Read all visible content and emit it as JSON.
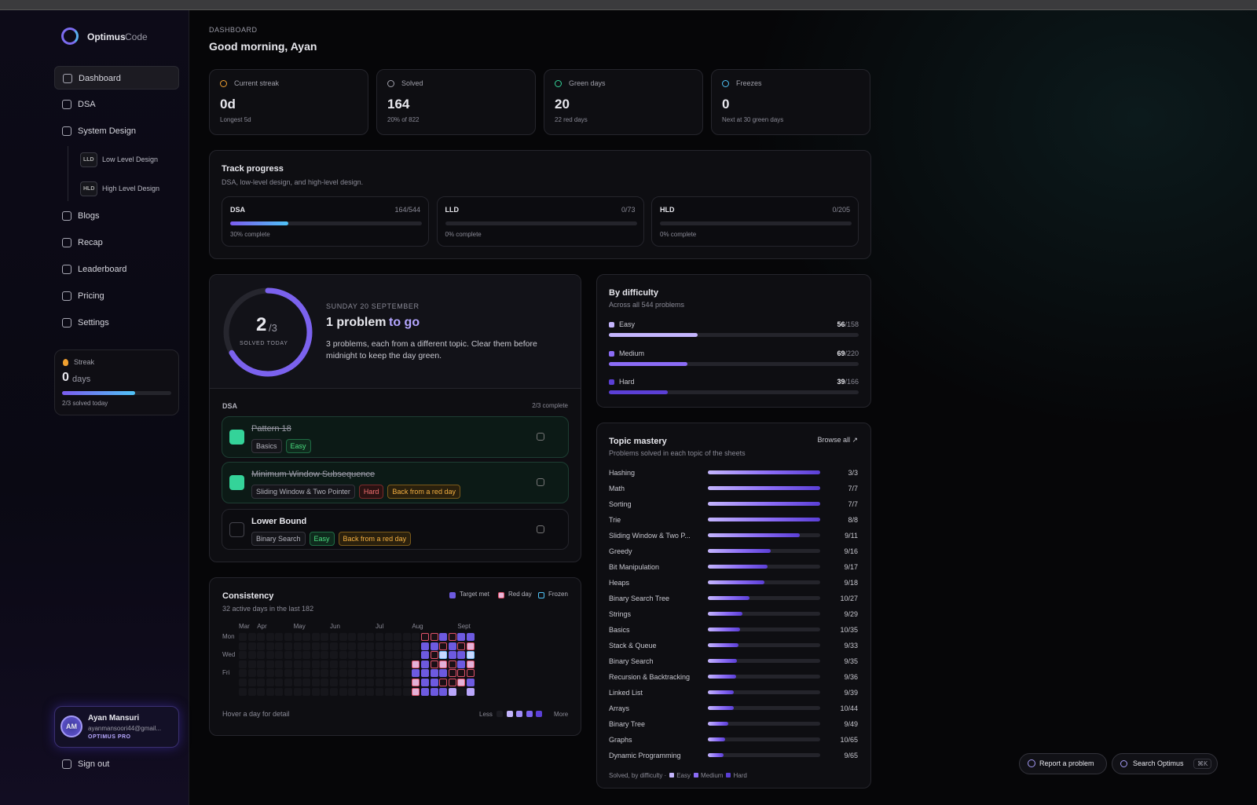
{
  "sidebar": {
    "brand": {
      "name": "Optimus",
      "suffix": "Code"
    },
    "nav": [
      "Dashboard",
      "DSA",
      "System Design"
    ],
    "sub_nav": [
      {
        "badge": "LLD",
        "label": "Low Level Design"
      },
      {
        "badge": "HLD",
        "label": "High Level Design"
      }
    ],
    "nav_more": [
      "Blogs",
      "Recap",
      "Leaderboard",
      "Pricing",
      "Settings"
    ],
    "streak": {
      "label": "Streak",
      "value": "0",
      "unit": "days",
      "note": "2/3 solved today",
      "solved": 2,
      "target": 3
    },
    "user": {
      "initials": "AM",
      "name": "Ayan Mansuri",
      "email": "ayanmansoori44@gmail...",
      "plan": "OPTIMUS PRO"
    },
    "sign_out": "Sign out"
  },
  "header": {
    "eyebrow": "DASHBOARD",
    "title": "Good morning, Ayan"
  },
  "stats": [
    {
      "label": "Current streak",
      "value": "0d",
      "note": "Longest 5d"
    },
    {
      "label": "Solved",
      "value": "164",
      "note": "20% of 822"
    },
    {
      "label": "Green days",
      "value": "20",
      "note": "22 red days"
    },
    {
      "label": "Freezes",
      "value": "0",
      "note": "Next at 30 green days"
    }
  ],
  "track": {
    "title": "Track progress",
    "subtitle": "DSA, low-level design, and high-level design.",
    "items": [
      {
        "name": "DSA",
        "count": "164/544",
        "solved": 164,
        "total": 544,
        "note": "30% complete"
      },
      {
        "name": "LLD",
        "count": "0/73",
        "solved": 0,
        "total": 73,
        "note": "0% complete"
      },
      {
        "name": "HLD",
        "count": "0/205",
        "solved": 0,
        "total": 205,
        "note": "0% complete"
      }
    ]
  },
  "today": {
    "solved": 2,
    "target": 3,
    "target_label": "/3",
    "ring_label": "SOLVED TODAY",
    "date": "SUNDAY 20 SEPTEMBER",
    "headline": "1 problem",
    "headline_rest": "to go",
    "description": "3 problems, each from a different topic. Clear them before midnight to keep the day green.",
    "section": "DSA",
    "section_note": "2/3 complete",
    "problems": [
      {
        "title": "Pattern 18",
        "done": true,
        "tags": [
          {
            "text": "Basics",
            "kind": "topic"
          },
          {
            "text": "Easy",
            "kind": "easy"
          }
        ]
      },
      {
        "title": "Minimum Window Subsequence",
        "done": true,
        "tags": [
          {
            "text": "Sliding Window & Two Pointer",
            "kind": "topic"
          },
          {
            "text": "Hard",
            "kind": "hard"
          },
          {
            "text": "Back from a red day",
            "kind": "back"
          }
        ]
      },
      {
        "title": "Lower Bound",
        "done": false,
        "tags": [
          {
            "text": "Binary Search",
            "kind": "topic"
          },
          {
            "text": "Easy",
            "kind": "easy"
          },
          {
            "text": "Back from a red day",
            "kind": "back"
          }
        ]
      }
    ]
  },
  "consistency": {
    "title": "Consistency",
    "subtitle": "32 active days in the last 182",
    "legend": [
      "Target met",
      "Red day",
      "Frozen"
    ],
    "months": [
      {
        "label": "Mar",
        "week": 0
      },
      {
        "label": "Apr",
        "week": 2
      },
      {
        "label": "May",
        "week": 6
      },
      {
        "label": "Jun",
        "week": 10
      },
      {
        "label": "Jul",
        "week": 15
      },
      {
        "label": "Aug",
        "week": 19
      },
      {
        "label": "Sept",
        "week": 24
      }
    ],
    "days": [
      {
        "label": "Mon",
        "row": 0
      },
      {
        "label": "Wed",
        "row": 2
      },
      {
        "label": "Fri",
        "row": 4
      }
    ],
    "weeks": [
      [
        0,
        0,
        0,
        0,
        0,
        0,
        0
      ],
      [
        0,
        0,
        0,
        0,
        0,
        0,
        0
      ],
      [
        0,
        0,
        0,
        0,
        0,
        0,
        0
      ],
      [
        0,
        0,
        0,
        0,
        0,
        0,
        0
      ],
      [
        0,
        0,
        0,
        0,
        0,
        0,
        0
      ],
      [
        0,
        0,
        0,
        0,
        0,
        0,
        0
      ],
      [
        0,
        0,
        0,
        0,
        0,
        0,
        0
      ],
      [
        0,
        0,
        0,
        0,
        0,
        0,
        0
      ],
      [
        0,
        0,
        0,
        0,
        0,
        0,
        0
      ],
      [
        0,
        0,
        0,
        0,
        0,
        0,
        0
      ],
      [
        0,
        0,
        0,
        0,
        0,
        0,
        0
      ],
      [
        0,
        0,
        0,
        0,
        0,
        0,
        0
      ],
      [
        0,
        0,
        0,
        0,
        0,
        0,
        0
      ],
      [
        0,
        0,
        0,
        0,
        0,
        0,
        0
      ],
      [
        0,
        0,
        0,
        0,
        0,
        0,
        0
      ],
      [
        0,
        0,
        0,
        0,
        0,
        0,
        0
      ],
      [
        0,
        0,
        0,
        0,
        0,
        0,
        0
      ],
      [
        0,
        0,
        0,
        0,
        0,
        0,
        0
      ],
      [
        0,
        0,
        0,
        0,
        0,
        0,
        0
      ],
      [
        0,
        0,
        0,
        2,
        3,
        2,
        2
      ],
      [
        4,
        3,
        3,
        3,
        3,
        3,
        3
      ],
      [
        4,
        3,
        4,
        4,
        3,
        3,
        3
      ],
      [
        3,
        4,
        5,
        2,
        3,
        4,
        3
      ],
      [
        4,
        3,
        3,
        4,
        4,
        4,
        1
      ],
      [
        3,
        4,
        3,
        3,
        4,
        2,
        0
      ],
      [
        3,
        2,
        5,
        2,
        4,
        3,
        1
      ]
    ],
    "footer": "Hover a day for detail",
    "less": "Less",
    "more": "More"
  },
  "difficulty": {
    "title": "By difficulty",
    "subtitle": "Across all 544 problems",
    "items": [
      {
        "name": "Easy",
        "solved": 56,
        "total": 158,
        "total_label": "/158",
        "color": "#c4b5fd"
      },
      {
        "name": "Medium",
        "solved": 69,
        "total": 220,
        "total_label": "/220",
        "color": "#8b6cf6"
      },
      {
        "name": "Hard",
        "solved": 39,
        "total": 166,
        "total_label": "/166",
        "color": "#5b3fd6"
      }
    ]
  },
  "topics": {
    "title": "Topic mastery",
    "subtitle": "Problems solved in each topic of the sheets",
    "browse": "Browse all ↗",
    "items": [
      {
        "name": "Hashing",
        "label": "3/3",
        "solved": 3,
        "total": 3
      },
      {
        "name": "Math",
        "label": "7/7",
        "solved": 7,
        "total": 7
      },
      {
        "name": "Sorting",
        "label": "7/7",
        "solved": 7,
        "total": 7
      },
      {
        "name": "Trie",
        "label": "8/8",
        "solved": 8,
        "total": 8
      },
      {
        "name": "Sliding Window & Two P...",
        "label": "9/11",
        "solved": 9,
        "total": 11
      },
      {
        "name": "Greedy",
        "label": "9/16",
        "solved": 9,
        "total": 16
      },
      {
        "name": "Bit Manipulation",
        "label": "9/17",
        "solved": 9,
        "total": 17
      },
      {
        "name": "Heaps",
        "label": "9/18",
        "solved": 9,
        "total": 18
      },
      {
        "name": "Binary Search Tree",
        "label": "10/27",
        "solved": 10,
        "total": 27
      },
      {
        "name": "Strings",
        "label": "9/29",
        "solved": 9,
        "total": 29
      },
      {
        "name": "Basics",
        "label": "10/35",
        "solved": 10,
        "total": 35
      },
      {
        "name": "Stack & Queue",
        "label": "9/33",
        "solved": 9,
        "total": 33
      },
      {
        "name": "Binary Search",
        "label": "9/35",
        "solved": 9,
        "total": 35
      },
      {
        "name": "Recursion & Backtracking",
        "label": "9/36",
        "solved": 9,
        "total": 36
      },
      {
        "name": "Linked List",
        "label": "9/39",
        "solved": 9,
        "total": 39
      },
      {
        "name": "Arrays",
        "label": "10/44",
        "solved": 10,
        "total": 44
      },
      {
        "name": "Binary Tree",
        "label": "9/49",
        "solved": 9,
        "total": 49
      },
      {
        "name": "Graphs",
        "label": "10/65",
        "solved": 10,
        "total": 65
      },
      {
        "name": "Dynamic Programming",
        "label": "9/65",
        "solved": 9,
        "total": 65
      }
    ],
    "footer": "Solved, by difficulty ·",
    "footer_legend": [
      "Easy",
      "Medium",
      "Hard"
    ]
  },
  "actions": {
    "report": "Report a problem",
    "search": "Search Optimus",
    "shortcut": "⌘K"
  }
}
